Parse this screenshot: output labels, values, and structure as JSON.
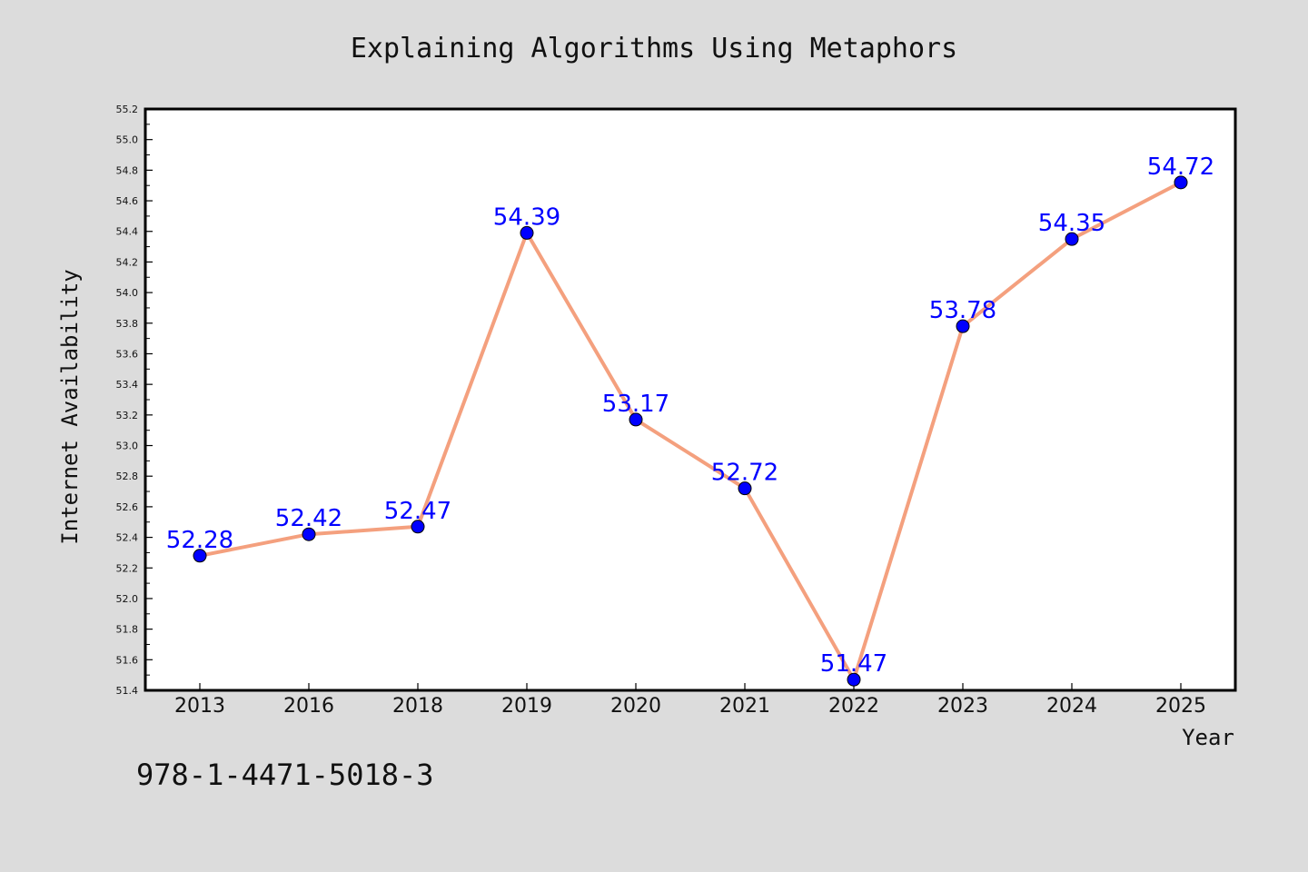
{
  "chart_data": {
    "type": "line",
    "title": "Explaining Algorithms Using Metaphors",
    "xlabel": "Year",
    "ylabel": "Internet Availability",
    "categories": [
      "2013",
      "2016",
      "2018",
      "2019",
      "2020",
      "2021",
      "2022",
      "2023",
      "2024",
      "2025"
    ],
    "series": [
      {
        "values": [
          52.28,
          52.42,
          52.47,
          54.39,
          53.17,
          52.72,
          51.47,
          53.78,
          54.35,
          54.72
        ],
        "data_labels": [
          "52.28",
          "52.42",
          "52.47",
          "54.39",
          "53.17",
          "52.72",
          "51.47",
          "53.78",
          "54.35",
          "54.72"
        ],
        "line_color": "#f4a07e",
        "marker_color": "#0000ff",
        "label_color": "#0000ff"
      }
    ],
    "ylim": [
      51.4,
      55.2
    ],
    "yticks": [
      "51.4",
      "51.6",
      "51.8",
      "52.0",
      "52.2",
      "52.4",
      "52.6",
      "52.8",
      "53.0",
      "53.2",
      "53.4",
      "53.6",
      "53.8",
      "54.0",
      "54.2",
      "54.4",
      "54.6",
      "54.8",
      "55.0",
      "55.2"
    ],
    "grid": false,
    "legend": "none"
  },
  "footer_code": "978-1-4471-5018-3",
  "colors": {
    "background": "#dcdcdc",
    "plot_background": "#ffffff",
    "frame": "#000000"
  }
}
